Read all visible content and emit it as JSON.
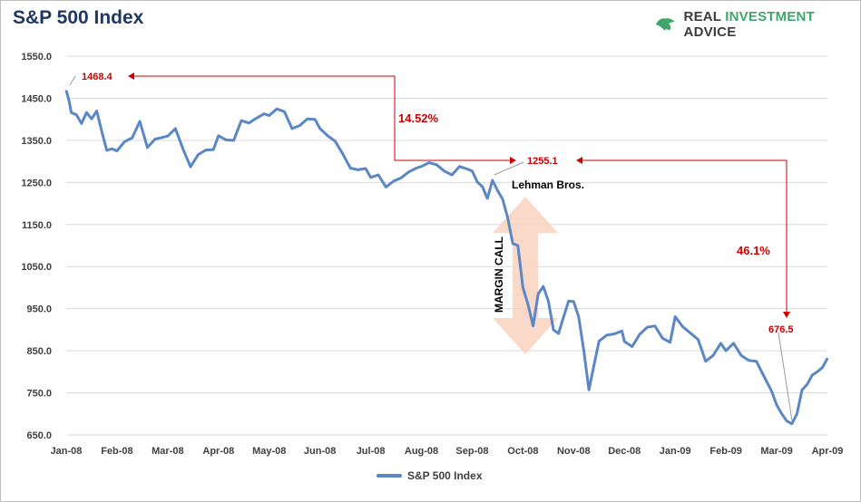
{
  "title": "S&P 500 Index",
  "brand": {
    "prefix": "REAL ",
    "accent": "INVESTMENT",
    "suffix": " ADVICE"
  },
  "colors": {
    "series": "#5b87c5",
    "annotation": "#cc0000",
    "arrow_fill": "#f9d2bf",
    "grid": "#d9d9d9"
  },
  "legend": {
    "label": "S&P 500 Index"
  },
  "annotations": {
    "peak_label": "1468.4",
    "mid_label": "1255.1",
    "trough_label": "676.5",
    "drop1_pct": "14.52%",
    "drop2_pct": "46.1%",
    "lehman": "Lehman Bros.",
    "margin_call": "MARGIN CALL"
  },
  "chart_data": {
    "type": "line",
    "title": "S&P 500 Index",
    "xlabel": "",
    "ylabel": "",
    "ylim": [
      650,
      1550
    ],
    "yticks": [
      650,
      750,
      850,
      950,
      1050,
      1150,
      1250,
      1350,
      1450,
      1550
    ],
    "ytick_labels": [
      "650.0",
      "750.0",
      "850.0",
      "950.0",
      "1050.0",
      "1150.0",
      "1250.0",
      "1350.0",
      "1450.0",
      "1550.0"
    ],
    "xticks": [
      "Jan-08",
      "Feb-08",
      "Mar-08",
      "Apr-08",
      "May-08",
      "Jun-08",
      "Jul-08",
      "Aug-08",
      "Sep-08",
      "Oct-08",
      "Nov-08",
      "Dec-08",
      "Jan-09",
      "Feb-09",
      "Mar-09",
      "Apr-09"
    ],
    "grid": true,
    "legend_position": "bottom",
    "series": [
      {
        "name": "S&P 500 Index",
        "x": [
          0,
          0.05,
          0.1,
          0.2,
          0.3,
          0.4,
          0.5,
          0.6,
          0.7,
          0.8,
          0.9,
          1.0,
          1.15,
          1.3,
          1.45,
          1.6,
          1.75,
          1.9,
          2.0,
          2.15,
          2.3,
          2.45,
          2.6,
          2.75,
          2.9,
          3.0,
          3.15,
          3.3,
          3.45,
          3.6,
          3.75,
          3.9,
          4.0,
          4.15,
          4.3,
          4.45,
          4.6,
          4.75,
          4.9,
          5.0,
          5.15,
          5.3,
          5.45,
          5.6,
          5.75,
          5.9,
          6.0,
          6.15,
          6.3,
          6.45,
          6.6,
          6.75,
          6.9,
          7.0,
          7.15,
          7.3,
          7.45,
          7.6,
          7.75,
          7.9,
          8.0,
          8.1,
          8.2,
          8.3,
          8.4,
          8.5,
          8.6,
          8.7,
          8.8,
          8.9,
          9.0,
          9.1,
          9.2,
          9.3,
          9.4,
          9.5,
          9.6,
          9.7,
          9.8,
          9.9,
          10.0,
          10.1,
          10.2,
          10.3,
          10.4,
          10.5,
          10.65,
          10.8,
          10.95,
          11.0,
          11.15,
          11.3,
          11.45,
          11.6,
          11.75,
          11.9,
          12.0,
          12.15,
          12.3,
          12.45,
          12.6,
          12.75,
          12.9,
          13.0,
          13.15,
          13.3,
          13.45,
          13.6,
          13.75,
          13.9,
          14.0,
          14.1,
          14.2,
          14.3,
          14.4,
          14.5,
          14.6,
          14.7,
          14.8,
          14.9,
          15.0
        ],
        "values": [
          1468.4,
          1447,
          1416,
          1411,
          1390,
          1416,
          1401,
          1420,
          1371,
          1326,
          1330,
          1325,
          1347,
          1356,
          1395,
          1333,
          1353,
          1357,
          1360,
          1378,
          1330,
          1287,
          1316,
          1327,
          1328,
          1361,
          1351,
          1350,
          1397,
          1391,
          1403,
          1413,
          1409,
          1425,
          1418,
          1378,
          1385,
          1401,
          1400,
          1378,
          1361,
          1348,
          1318,
          1284,
          1280,
          1283,
          1262,
          1268,
          1239,
          1253,
          1261,
          1275,
          1284,
          1288,
          1297,
          1292,
          1277,
          1268,
          1288,
          1282,
          1277,
          1251,
          1240,
          1212,
          1255.1,
          1231,
          1210,
          1166,
          1105,
          1100,
          1000,
          960,
          909,
          985,
          1003,
          968,
          900,
          891,
          930,
          968,
          967,
          930,
          850,
          757,
          816,
          873,
          887,
          890,
          897,
          872,
          860,
          889,
          906,
          909,
          880,
          870,
          931,
          907,
          892,
          877,
          825,
          839,
          868,
          850,
          868,
          839,
          827,
          825,
          789,
          754,
          721,
          700,
          683,
          676.5,
          700,
          757,
          770,
          792,
          800,
          810,
          832
        ]
      }
    ]
  }
}
